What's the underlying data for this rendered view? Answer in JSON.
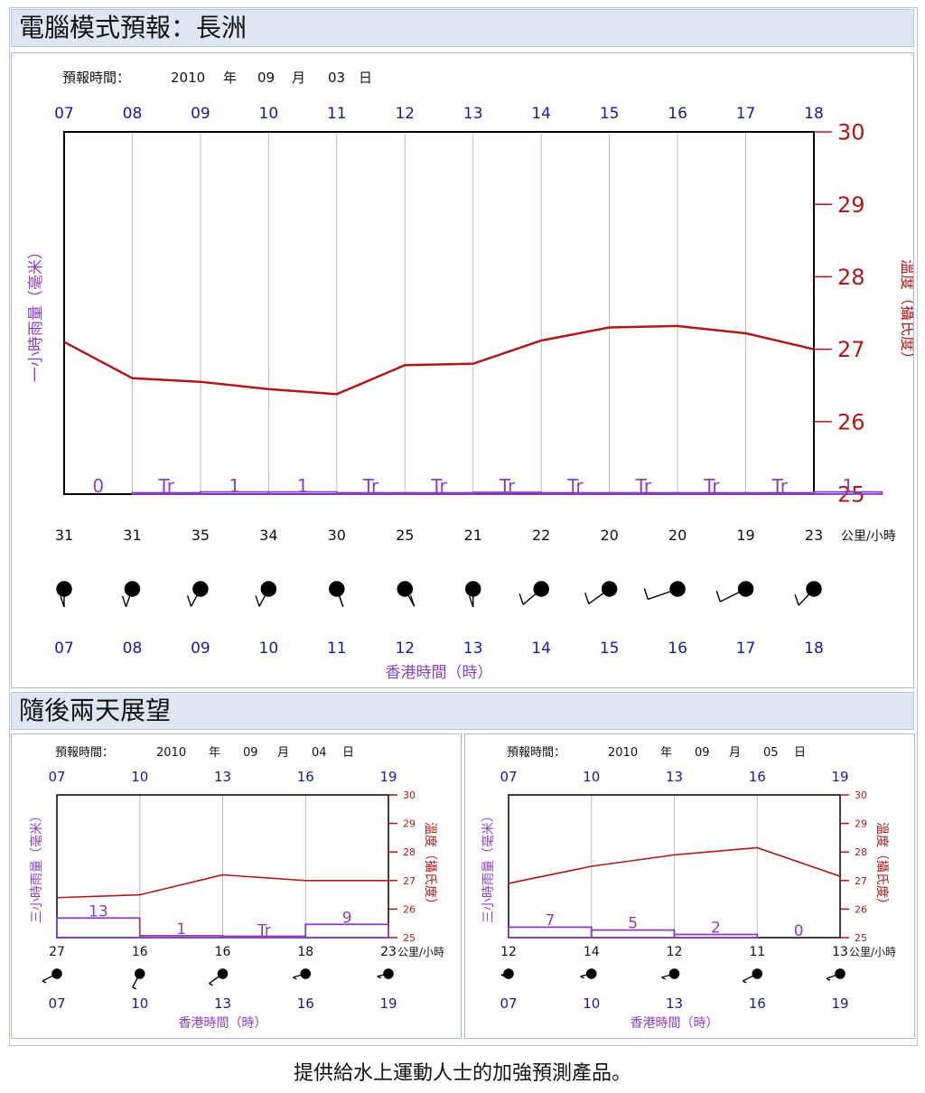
{
  "header": {
    "title": "電腦模式預報：長洲"
  },
  "outlook": {
    "title": "隨後兩天展望"
  },
  "footer": {
    "text": "提供給水上運動人士的加強預測產品。"
  },
  "colors": {
    "temp_line": "#b01818",
    "rain": "#8a3fbf",
    "hour_label": "#1a1a9a",
    "header_bg": "#dde7f3"
  },
  "chart_data": [
    {
      "type": "line",
      "forecast_time_label": "預報時間：",
      "date": {
        "year": "2010",
        "year_unit": "年",
        "month": "09",
        "month_unit": "月",
        "day": "03",
        "day_unit": "日"
      },
      "hours": [
        "07",
        "08",
        "09",
        "10",
        "11",
        "12",
        "13",
        "14",
        "15",
        "16",
        "17",
        "18"
      ],
      "temperature": [
        27.1,
        26.6,
        26.55,
        26.45,
        26.38,
        26.78,
        26.8,
        27.12,
        27.3,
        27.32,
        27.22,
        27.0
      ],
      "ylim": [
        25,
        30
      ],
      "yticks": [
        "25",
        "26",
        "27",
        "28",
        "29",
        "30"
      ],
      "rain_label": "一小時雨量（毫米）",
      "temp_label": "溫度（攝氏度）",
      "rain": [
        "0",
        "Tr",
        "1",
        "1",
        "Tr",
        "Tr",
        "Tr",
        "Tr",
        "Tr",
        "Tr",
        "Tr",
        "1"
      ],
      "rain_bar": [
        0,
        0.15,
        0.3,
        0.3,
        0.08,
        0.12,
        0.25,
        0.15,
        0.05,
        0.05,
        0.05,
        0.3
      ],
      "wind_speed": [
        "31",
        "31",
        "35",
        "34",
        "30",
        "25",
        "21",
        "22",
        "20",
        "20",
        "19",
        "23"
      ],
      "wind_unit": "公里/小時",
      "wind_dir_deg": [
        270,
        260,
        255,
        255,
        280,
        285,
        270,
        240,
        235,
        215,
        225,
        245
      ],
      "xlabel": "香港時間（時）"
    },
    {
      "type": "line",
      "forecast_time_label": "預報時間：",
      "date": {
        "year": "2010",
        "year_unit": "年",
        "month": "09",
        "month_unit": "月",
        "day": "04",
        "day_unit": "日"
      },
      "hours": [
        "07",
        "10",
        "13",
        "16",
        "19"
      ],
      "temperature": [
        26.4,
        26.5,
        27.2,
        27.0,
        27.0
      ],
      "ylim": [
        25,
        30
      ],
      "yticks": [
        "25",
        "26",
        "27",
        "28",
        "29",
        "30"
      ],
      "rain_label": "三小時雨量（毫米）",
      "temp_label": "溫度（攝氏度）",
      "rain": [
        "13",
        "1",
        "Tr",
        "9"
      ],
      "rain_bar": [
        0.62,
        0.06,
        0.02,
        0.42
      ],
      "wind_speed": [
        "27",
        "16",
        "16",
        "18",
        "23"
      ],
      "wind_unit": "公里/小時",
      "wind_dir_deg": [
        180,
        240,
        200,
        150,
        140
      ],
      "xlabel": "香港時間（時）"
    },
    {
      "type": "line",
      "forecast_time_label": "預報時間：",
      "date": {
        "year": "2010",
        "year_unit": "年",
        "month": "09",
        "month_unit": "月",
        "day": "05",
        "day_unit": "日"
      },
      "hours": [
        "07",
        "10",
        "13",
        "16",
        "19"
      ],
      "temperature": [
        26.9,
        27.5,
        27.9,
        28.15,
        27.15
      ],
      "ylim": [
        25,
        30
      ],
      "yticks": [
        "25",
        "26",
        "27",
        "28",
        "29",
        "30"
      ],
      "rain_label": "三小時雨量（毫米）",
      "temp_label": "溫度（攝氏度）",
      "rain": [
        "7",
        "5",
        "2",
        "0"
      ],
      "rain_bar": [
        0.33,
        0.24,
        0.1,
        0.0
      ],
      "wind_speed": [
        "12",
        "14",
        "12",
        "11",
        "13"
      ],
      "wind_unit": "公里/小時",
      "wind_dir_deg": [
        120,
        140,
        150,
        180,
        160
      ],
      "xlabel": "香港時間（時）"
    }
  ]
}
